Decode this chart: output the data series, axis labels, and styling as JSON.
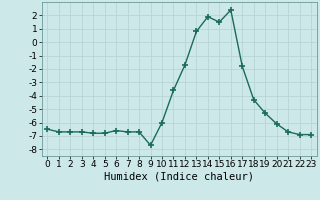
{
  "x": [
    0,
    1,
    2,
    3,
    4,
    5,
    6,
    7,
    8,
    9,
    10,
    11,
    12,
    13,
    14,
    15,
    16,
    17,
    18,
    19,
    20,
    21,
    22,
    23
  ],
  "y": [
    -6.5,
    -6.7,
    -6.7,
    -6.7,
    -6.8,
    -6.8,
    -6.6,
    -6.7,
    -6.7,
    -7.7,
    -6.0,
    -3.6,
    -1.7,
    0.8,
    1.9,
    1.5,
    2.4,
    -1.8,
    -4.3,
    -5.3,
    -6.1,
    -6.7,
    -6.9,
    -6.9
  ],
  "line_color": "#1a6b5a",
  "marker": "+",
  "markersize": 4.0,
  "linewidth": 1.0,
  "xlabel": "Humidex (Indice chaleur)",
  "xlim": [
    -0.5,
    23.5
  ],
  "ylim": [
    -8.5,
    3.0
  ],
  "yticks": [
    -8,
    -7,
    -6,
    -5,
    -4,
    -3,
    -2,
    -1,
    0,
    1,
    2
  ],
  "xticks": [
    0,
    1,
    2,
    3,
    4,
    5,
    6,
    7,
    8,
    9,
    10,
    11,
    12,
    13,
    14,
    15,
    16,
    17,
    18,
    19,
    20,
    21,
    22,
    23
  ],
  "bg_color": "#cce8e8",
  "grid_color": "#b8d4d4",
  "tick_label_fontsize": 6.5,
  "xlabel_fontsize": 7.5,
  "marker_color": "#1a6b5a"
}
